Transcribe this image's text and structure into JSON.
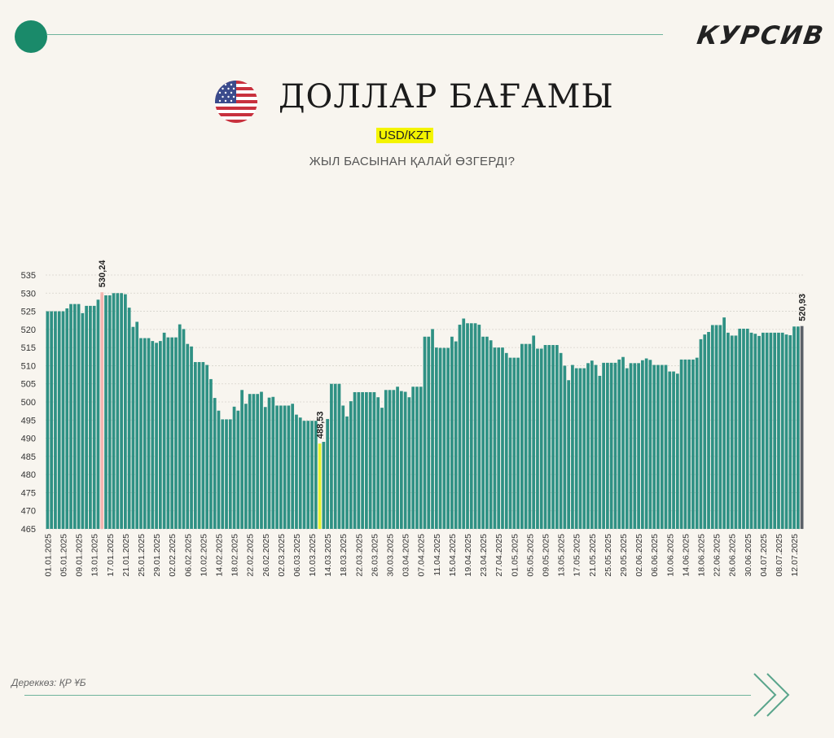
{
  "header": {
    "brand": "КУРСИВ",
    "title": "ДОЛЛАР БАҒАМЫ",
    "pair": "USD/KZT",
    "subtitle": "ЖЫЛ БАСЫНАН ҚАЛАЙ ӨЗГЕРДІ?"
  },
  "footer": {
    "source": "Дереккөз: ҚР ҰБ"
  },
  "icons": {
    "flag": "us-flag-icon",
    "next": "double-chevron-right-icon",
    "dot": "green-circle-icon"
  },
  "colors": {
    "background": "#f8f5ef",
    "bar": "#2f9184",
    "bar_start_highlight": "#f4b6b1",
    "bar_min_highlight": "#e6f430",
    "bar_last": "#5b6168",
    "accent_green": "#1a8a6a",
    "pair_highlight": "#f4f400"
  },
  "chart_data": {
    "type": "bar",
    "ylim": [
      465,
      535
    ],
    "yticks": [
      465,
      470,
      475,
      480,
      485,
      490,
      495,
      500,
      505,
      510,
      515,
      520,
      525,
      530,
      535
    ],
    "grid": true,
    "xtick_labels": [
      "01.01.2025",
      "05.01.2025",
      "09.01.2025",
      "13.01.2025",
      "17.01.2025",
      "21.01.2025",
      "25.01.2025",
      "29.01.2025",
      "02.02.2025",
      "06.02.2025",
      "10.02.2025",
      "14.02.2025",
      "18.02.2025",
      "22.02.2025",
      "26.02.2025",
      "02.03.2025",
      "06.03.2025",
      "10.03.2025",
      "14.03.2025",
      "18.03.2025",
      "22.03.2025",
      "26.03.2025",
      "30.03.2025",
      "03.04.2025",
      "07.04.2025",
      "11.04.2025",
      "15.04.2025",
      "19.04.2025",
      "23.04.2025",
      "27.04.2025",
      "01.05.2025",
      "05.05.2025",
      "09.05.2025",
      "13.05.2025",
      "17.05.2025",
      "21.05.2025",
      "25.05.2025",
      "29.05.2025",
      "02.06.2025",
      "06.06.2025",
      "10.06.2025",
      "14.06.2025",
      "18.06.2025",
      "22.06.2025",
      "26.06.2025",
      "30.06.2025",
      "04.07.2025",
      "08.07.2025",
      "12.07.2025"
    ],
    "values": [
      525,
      525,
      525,
      525,
      525,
      525.8,
      527,
      527,
      527,
      524.5,
      526.5,
      526.5,
      526.5,
      528.2,
      530.24,
      529.4,
      529.4,
      530,
      530,
      530,
      529.7,
      526,
      520.7,
      522.1,
      517.6,
      517.6,
      517.6,
      516.8,
      516.3,
      516.8,
      519.1,
      517.8,
      517.8,
      517.8,
      521.4,
      520.1,
      516,
      515.3,
      511,
      511,
      511,
      510.2,
      506.3,
      501.1,
      497.6,
      495.2,
      495.2,
      495.2,
      498.7,
      497.6,
      503.3,
      499.5,
      502.2,
      502.2,
      502.2,
      502.8,
      498.6,
      501.2,
      501.4,
      499,
      499,
      499,
      499,
      499.5,
      496.5,
      495.7,
      494.8,
      494.8,
      494.8,
      494.8,
      488.53,
      489,
      495.3,
      505,
      505,
      505,
      499,
      496,
      500.2,
      502.7,
      502.7,
      502.7,
      502.7,
      502.7,
      502.7,
      501.3,
      498.4,
      503.3,
      503.3,
      503.3,
      504.2,
      503,
      502.8,
      501.3,
      504.2,
      504.2,
      504.2,
      518,
      518,
      520.1,
      515,
      514.9,
      514.9,
      514.9,
      518,
      516.7,
      521.3,
      523,
      521.7,
      521.7,
      521.7,
      521.3,
      518,
      518,
      517,
      515,
      515,
      515,
      513.5,
      512.2,
      512.2,
      512.2,
      516,
      516,
      516,
      518.3,
      514.7,
      514.7,
      515.7,
      515.7,
      515.7,
      515.7,
      513.5,
      510,
      506,
      510.2,
      509.3,
      509.3,
      509.3,
      510.7,
      511.4,
      510.2,
      507.2,
      510.8,
      510.8,
      510.8,
      510.8,
      511.7,
      512.4,
      509.3,
      510.7,
      510.7,
      510.7,
      511.5,
      512,
      511.6,
      510.2,
      510.2,
      510.2,
      510.2,
      508.4,
      508.4,
      507.8,
      511.7,
      511.7,
      511.7,
      511.7,
      512.2,
      517.3,
      518.6,
      519.3,
      521.2,
      521.2,
      521.2,
      523.3,
      519.1,
      518.3,
      518.3,
      520.2,
      520.2,
      520.2,
      519.1,
      518.8,
      518.2,
      519.1,
      519.1,
      519.1,
      519.1,
      519.1,
      519.1,
      518.6,
      518.4,
      520.8,
      520.8,
      520.93
    ],
    "annotations": [
      {
        "label": "530,24",
        "index": 14
      },
      {
        "label": "488,53",
        "index": 70
      },
      {
        "label": "520,93",
        "index": 194
      }
    ]
  }
}
